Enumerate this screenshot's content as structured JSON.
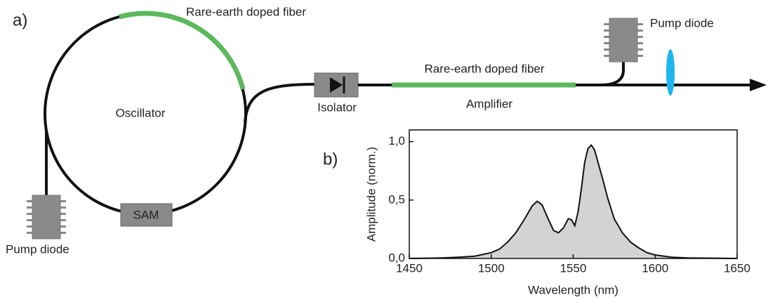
{
  "panel_a": "a)",
  "oscillator": {
    "fiber_label": "Rare-earth doped fiber",
    "label": "Oscillator",
    "sam": "SAM",
    "pump": "Pump diode"
  },
  "amplifier": {
    "isolator": "Isolator",
    "fiber_label": "Rare-earth doped fiber",
    "label": "Amplifier",
    "pump": "Pump diode"
  },
  "panel_b": "b)",
  "chart_data": {
    "type": "area",
    "x_label": "Wavelength (nm)",
    "y_label": "Amplitude (norm.)",
    "x": [
      1450,
      1470,
      1480,
      1490,
      1500,
      1505,
      1510,
      1515,
      1520,
      1525,
      1528,
      1531,
      1535,
      1538,
      1541,
      1544,
      1547,
      1549,
      1551,
      1553,
      1555,
      1557,
      1559,
      1561,
      1563,
      1565,
      1568,
      1571,
      1575,
      1580,
      1585,
      1590,
      1595,
      1600,
      1610,
      1620,
      1650
    ],
    "values": [
      0,
      0.005,
      0.01,
      0.02,
      0.05,
      0.08,
      0.14,
      0.22,
      0.33,
      0.45,
      0.49,
      0.46,
      0.33,
      0.24,
      0.22,
      0.26,
      0.34,
      0.33,
      0.28,
      0.4,
      0.6,
      0.82,
      0.94,
      0.97,
      0.93,
      0.83,
      0.68,
      0.52,
      0.34,
      0.22,
      0.14,
      0.09,
      0.05,
      0.03,
      0.01,
      0.005,
      0
    ],
    "color": "#d3d3d3",
    "xlim": [
      1450,
      1650
    ],
    "xticks": [
      1450,
      1500,
      1550,
      1600,
      1650
    ],
    "ylim": [
      0,
      1.1
    ],
    "yticks": [
      {
        "value": 0,
        "label": "0,0"
      },
      {
        "value": 0.5,
        "label": "0,5"
      },
      {
        "value": 1,
        "label": "1,0"
      }
    ]
  }
}
